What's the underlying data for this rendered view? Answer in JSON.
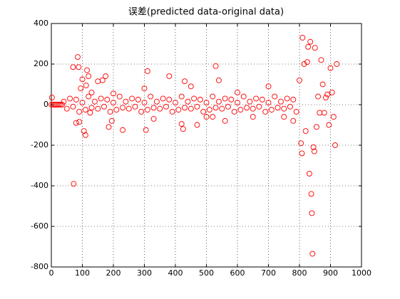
{
  "chart_data": {
    "type": "scatter",
    "title": "误差(predicted data-original data)",
    "series": [
      {
        "color": "#ff0000",
        "x": [
          0,
          5,
          10,
          15,
          20,
          25,
          30,
          35,
          40,
          50,
          60,
          70,
          80,
          90,
          100,
          110,
          120,
          130,
          140,
          150,
          160,
          170,
          180,
          190,
          200,
          210,
          220,
          230,
          240,
          250,
          260,
          270,
          280,
          290,
          300,
          310,
          320,
          330,
          340,
          350,
          360,
          370,
          380,
          390,
          400,
          410,
          420,
          430,
          440,
          450,
          460,
          470,
          480,
          490,
          500,
          510,
          520,
          530,
          540,
          550,
          560,
          570,
          580,
          590,
          600,
          610,
          620,
          630,
          640,
          650,
          660,
          670,
          680,
          690,
          700,
          710,
          720,
          730,
          740,
          750,
          760,
          770,
          780,
          790,
          2,
          70,
          72,
          80,
          85,
          88,
          90,
          95,
          100,
          105,
          110,
          112,
          115,
          120,
          125,
          130,
          150,
          165,
          175,
          185,
          195,
          200,
          230,
          300,
          305,
          310,
          330,
          380,
          420,
          425,
          430,
          450,
          470,
          500,
          520,
          530,
          540,
          560,
          600,
          650,
          700,
          750,
          780,
          800,
          805,
          808,
          810,
          815,
          820,
          825,
          828,
          832,
          835,
          838,
          840,
          842,
          845,
          848,
          850,
          855,
          860,
          865,
          870,
          875,
          880,
          885,
          890,
          895,
          900,
          905,
          910,
          915,
          920
        ],
        "values": [
          0,
          0,
          0,
          0,
          0,
          0,
          0,
          0,
          15,
          -20,
          30,
          -10,
          25,
          -35,
          10,
          -25,
          40,
          -15,
          15,
          -20,
          30,
          -10,
          25,
          -35,
          10,
          -25,
          40,
          -15,
          15,
          -20,
          30,
          -10,
          25,
          -35,
          10,
          -25,
          40,
          -15,
          15,
          -20,
          30,
          -10,
          25,
          -35,
          10,
          -25,
          40,
          -15,
          15,
          -20,
          30,
          -10,
          25,
          -35,
          10,
          -25,
          40,
          -15,
          15,
          -20,
          30,
          -10,
          25,
          -35,
          10,
          -25,
          40,
          -15,
          15,
          -20,
          30,
          -10,
          25,
          -35,
          10,
          -25,
          40,
          -15,
          15,
          -20,
          30,
          -10,
          25,
          -35,
          35,
          185,
          -390,
          -90,
          235,
          185,
          -85,
          80,
          125,
          -130,
          -150,
          95,
          170,
          140,
          -40,
          60,
          115,
          120,
          140,
          -110,
          -80,
          55,
          -125,
          80,
          -125,
          165,
          -70,
          140,
          -95,
          -120,
          115,
          90,
          -100,
          -60,
          -60,
          190,
          120,
          -80,
          60,
          -60,
          90,
          -60,
          -80,
          120,
          -190,
          -240,
          330,
          200,
          -130,
          210,
          285,
          -340,
          310,
          -440,
          -535,
          -735,
          -210,
          -230,
          280,
          -110,
          40,
          -40,
          220,
          100,
          -40,
          35,
          50,
          -100,
          180,
          60,
          -60,
          -200,
          200
        ]
      }
    ],
    "xlim": [
      0,
      1000
    ],
    "xticks": [
      0,
      100,
      200,
      300,
      400,
      500,
      600,
      700,
      800,
      900,
      1000
    ],
    "ylim": [
      -800,
      400
    ],
    "yticks": [
      -800,
      -600,
      -400,
      -200,
      0,
      200,
      400
    ],
    "grid": true
  }
}
